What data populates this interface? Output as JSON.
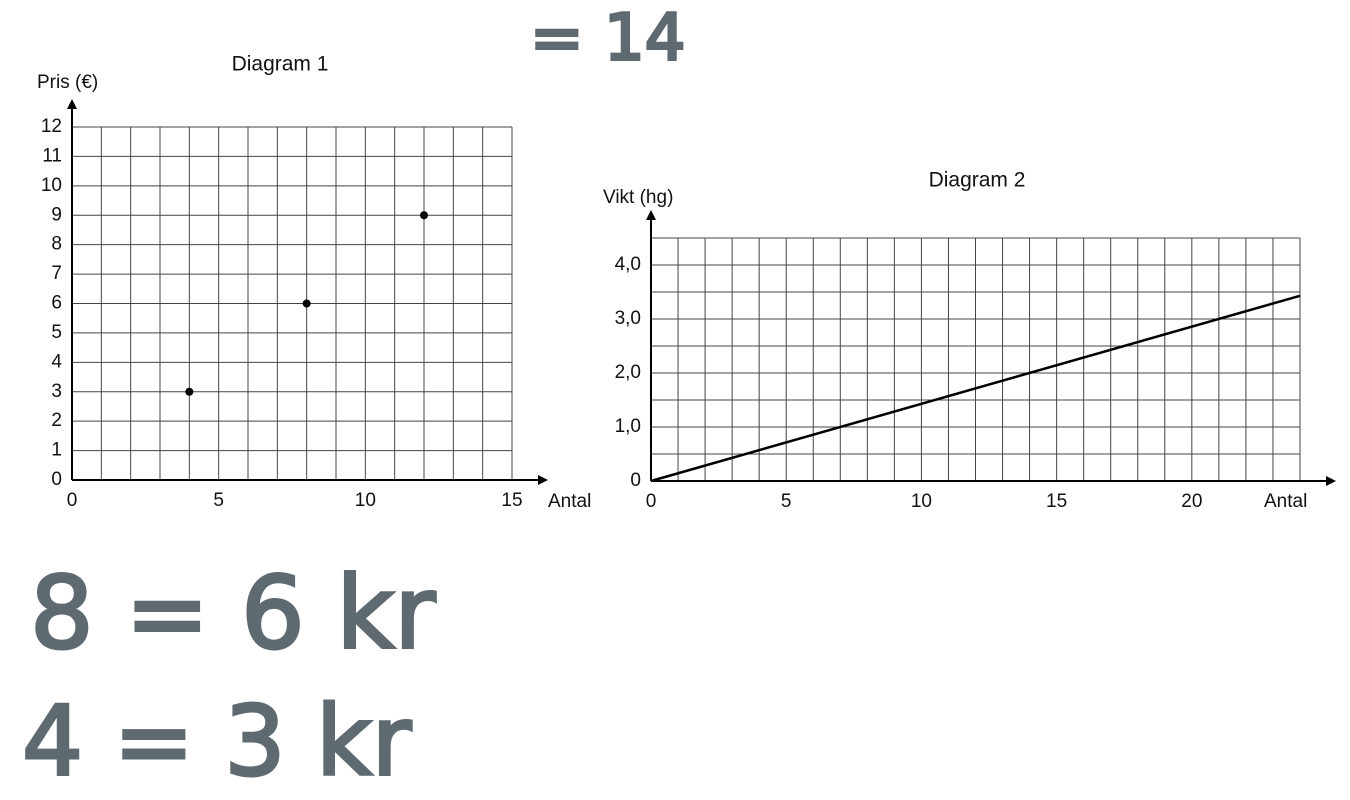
{
  "chart_data": [
    {
      "type": "scatter",
      "title": "Diagram 1",
      "ylabel": "Pris (€)",
      "xlabel": "Antal",
      "x": [
        4,
        8,
        12
      ],
      "values": [
        3,
        6,
        9
      ],
      "color": "#000000",
      "xlim": [
        0,
        15
      ],
      "ylim": [
        0,
        12
      ],
      "xticks": [
        0,
        5,
        10,
        15
      ],
      "yticks": [
        0,
        1,
        2,
        3,
        4,
        5,
        6,
        7,
        8,
        9,
        10,
        11,
        12
      ],
      "xgrid": 1,
      "ygrid": 1
    },
    {
      "type": "line",
      "title": "Diagram 2",
      "ylabel": "Vikt (hg)",
      "xlabel": "Antal",
      "x": [
        0,
        24
      ],
      "values": [
        0,
        3.43
      ],
      "color": "#000000",
      "xlim": [
        0,
        24
      ],
      "ylim": [
        0,
        4.5
      ],
      "xticks": [
        0,
        5,
        10,
        15,
        20
      ],
      "yticks": [
        0,
        {
          "value": 1,
          "label": "1,0"
        },
        {
          "value": 2,
          "label": "2,0"
        },
        {
          "value": 3,
          "label": "3,0"
        },
        {
          "value": 4,
          "label": "4,0"
        }
      ],
      "xgrid": 1,
      "ygrid": 0.5
    }
  ],
  "handwriting": [
    "= 14",
    "8 = 6 kr",
    "4 = 3 kr"
  ]
}
